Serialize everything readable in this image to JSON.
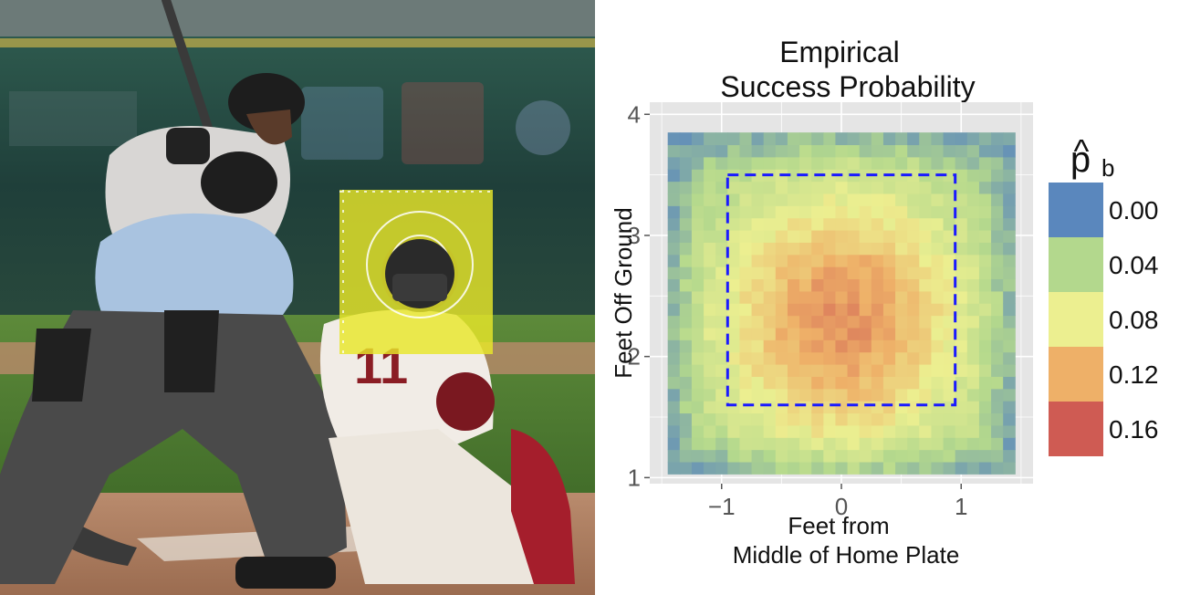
{
  "photo": {
    "description_label": "batter-catcher-umpire-photo",
    "catcher_jersey_number": "11"
  },
  "chart_data": {
    "type": "heatmap",
    "title": "Empirical Success Probability",
    "title_lines": [
      "Empirical",
      "Success Probability"
    ],
    "xlabel_lines": [
      "Feet from",
      "Middle of Home Plate"
    ],
    "ylabel": "Feet Off Ground",
    "xlim": [
      -1.6,
      1.6
    ],
    "ylim": [
      0.95,
      4.1
    ],
    "xticks": [
      {
        "value": -1,
        "label": "−1"
      },
      {
        "value": 0,
        "label": "0"
      },
      {
        "value": 1,
        "label": "1"
      }
    ],
    "yticks": [
      {
        "value": 1,
        "label": "1"
      },
      {
        "value": 2,
        "label": "2"
      },
      {
        "value": 3,
        "label": "3"
      },
      {
        "value": 4,
        "label": "4"
      }
    ],
    "grid": true,
    "x_range": [
      -1.45,
      1.45
    ],
    "y_range": [
      1.03,
      3.85
    ],
    "grid_size": [
      29,
      28
    ],
    "strike_zone": {
      "x": [
        -0.95,
        0.95
      ],
      "y": [
        1.6,
        3.5
      ],
      "color": "#1a1aff"
    },
    "legend": {
      "title": "p̂b",
      "title_main": "p",
      "title_hat": "^",
      "title_sub": "b",
      "placement": "right",
      "entries": [
        {
          "label": "0.00",
          "color": "#5a87bd"
        },
        {
          "label": "0.04",
          "color": "#b3d88d"
        },
        {
          "label": "0.08",
          "color": "#ecef90"
        },
        {
          "label": "0.12",
          "color": "#eeb068"
        },
        {
          "label": "0.16",
          "color": "#cf5b53"
        }
      ]
    },
    "color_scale": {
      "min": 0.0,
      "max": 0.16
    },
    "model": {
      "peak_value": 0.135,
      "peak_x": 0.0,
      "peak_y": 2.3,
      "sigma_x": 0.75,
      "sigma_y": 0.8,
      "floor": 0.03
    }
  }
}
